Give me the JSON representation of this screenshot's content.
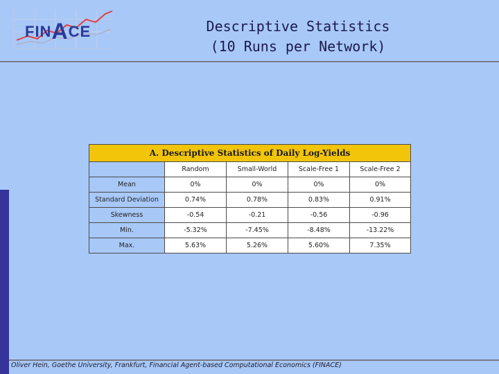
{
  "logo": {
    "text_pre": "FIN",
    "text_big": "A",
    "text_post": "CE"
  },
  "slide": {
    "title_line1": "Descriptive Statistics",
    "title_line2": "(10 Runs per Network)"
  },
  "table": {
    "caption": "A. Descriptive Statistics of Daily Log-Yields",
    "columns": [
      "Random",
      "Small-World",
      "Scale-Free 1",
      "Scale-Free 2"
    ],
    "rows": [
      {
        "label": "Mean",
        "values": [
          "0%",
          "0%",
          "0%",
          "0%"
        ]
      },
      {
        "label": "Standard Deviation",
        "values": [
          "0.74%",
          "0.78%",
          "0.83%",
          "0.91%"
        ]
      },
      {
        "label": "Skewness",
        "values": [
          "-0.54",
          "-0.21",
          "-0.56",
          "-0.96"
        ]
      },
      {
        "label": "Min.",
        "values": [
          "-5.32%",
          "-7.45%",
          "-8.48%",
          "-13.22%"
        ]
      },
      {
        "label": "Max.",
        "values": [
          "5.63%",
          "5.26%",
          "5.60%",
          "7.35%"
        ]
      }
    ]
  },
  "footer": {
    "text": "Oliver Hein, Goethe University, Frankfurt, Financial Agent-based Computational Economics (FINACE)"
  },
  "colors": {
    "background": "#a8c8f8",
    "accent_bar": "#34349a",
    "caption_bg": "#f2c40a",
    "logo_text": "#2a3a9a"
  }
}
